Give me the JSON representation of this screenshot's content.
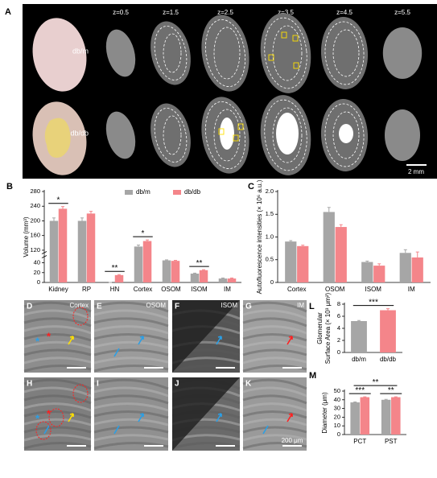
{
  "panel_a": {
    "label": "A",
    "z_labels": [
      "z=0.5",
      "z=1.5",
      "z=2.5",
      "z=3.5",
      "z=4.5",
      "z=5.5"
    ],
    "rows": [
      "db/m",
      "db/db"
    ],
    "scale_bar": "2 mm"
  },
  "chart_data": [
    {
      "type": "bar",
      "panel_label": "B",
      "ylabel": "Volume (mm³)",
      "categories": [
        "Kidney",
        "RP",
        "HN",
        "Cortex",
        "OSOM",
        "ISOM",
        "IM"
      ],
      "series": [
        {
          "name": "db/m",
          "color": "#a6a6a6",
          "values": [
            200,
            200,
            0,
            130,
            45,
            18,
            8
          ],
          "errors": [
            8,
            8,
            0,
            4,
            1,
            1,
            1
          ]
        },
        {
          "name": "db/db",
          "color": "#f4858a",
          "values": [
            233,
            220,
            15,
            145,
            44,
            25,
            8
          ],
          "errors": [
            6,
            6,
            1,
            3,
            1,
            1,
            1
          ]
        }
      ],
      "ylim": [
        0,
        280
      ],
      "ybreak": [
        50,
        110
      ],
      "yticks": [
        0,
        20,
        40,
        120,
        160,
        200,
        240,
        280
      ],
      "significance": [
        "*",
        null,
        "**",
        "*",
        null,
        "**",
        null
      ],
      "legend": "top"
    },
    {
      "type": "bar",
      "panel_label": "C",
      "ylabel": "Autofluorescence intensities (× 10⁶ a.u.)",
      "categories": [
        "Cortex",
        "OSOM",
        "ISOM",
        "IM"
      ],
      "series": [
        {
          "name": "db/m",
          "color": "#a6a6a6",
          "values": [
            0.9,
            1.55,
            0.45,
            0.65
          ],
          "errors": [
            0.02,
            0.1,
            0.02,
            0.07
          ]
        },
        {
          "name": "db/db",
          "color": "#f4858a",
          "values": [
            0.8,
            1.22,
            0.37,
            0.55
          ],
          "errors": [
            0.02,
            0.05,
            0.04,
            0.12
          ]
        }
      ],
      "ylim": [
        0,
        2
      ],
      "yticks": [
        0,
        0.5,
        {
          "value": 1,
          "label": "1.0"
        },
        1.5,
        {
          "value": 2,
          "label": "2.0"
        }
      ]
    },
    {
      "type": "bar",
      "panel_label": "L",
      "ylabel": [
        "Glomerular",
        "Surface Area (× 10³ μm²)"
      ],
      "categories": [
        "db/m",
        "db/db"
      ],
      "values": [
        5.2,
        7.0
      ],
      "errors": [
        0.1,
        0.25
      ],
      "colors": [
        "#a6a6a6",
        "#f4858a"
      ],
      "ylim": [
        0,
        8
      ],
      "yticks": [
        0,
        2,
        4,
        6,
        8
      ],
      "significance_between": "***"
    },
    {
      "type": "bar",
      "panel_label": "M",
      "ylabel": "Diameter (μm)",
      "categories": [
        "PCT",
        "PST"
      ],
      "series": [
        {
          "name": "db/m",
          "color": "#a6a6a6",
          "values": [
            37,
            40
          ],
          "errors": [
            0.5,
            0.5
          ]
        },
        {
          "name": "db/db",
          "color": "#f4858a",
          "values": [
            43,
            43
          ],
          "errors": [
            0.4,
            0.4
          ]
        }
      ],
      "ylim": [
        0,
        50
      ],
      "yticks": [
        0,
        10,
        20,
        30,
        40,
        50
      ],
      "significance": [
        "***",
        "**"
      ],
      "significance_between": "**"
    }
  ],
  "panels": [
    {
      "label": "D",
      "region": "Cortex",
      "markers": [
        {
          "text": "*",
          "color": "#2a9fe6"
        },
        {
          "text": "*",
          "color": "#ff2020"
        }
      ]
    },
    {
      "label": "E",
      "region": "OSOM"
    },
    {
      "label": "F",
      "region": "ISOM"
    },
    {
      "label": "G",
      "region": "IM"
    },
    {
      "label": "H",
      "markers": [
        {
          "text": "*",
          "color": "#2a9fe6"
        },
        {
          "text": "*",
          "color": "#ff2020"
        }
      ]
    },
    {
      "label": "I"
    },
    {
      "label": "J"
    },
    {
      "label": "K",
      "scale_bar": "200 μm"
    }
  ]
}
